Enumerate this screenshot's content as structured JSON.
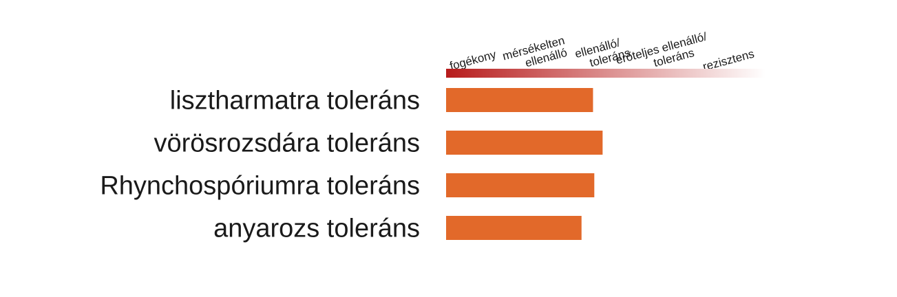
{
  "chart_data": {
    "type": "bar",
    "orientation": "horizontal",
    "scale": {
      "min": 0,
      "max": 5,
      "levels": [
        {
          "lines": [
            "fogékony"
          ]
        },
        {
          "lines": [
            "mérsékelten",
            "ellenálló"
          ]
        },
        {
          "lines": [
            "ellenálló/",
            "toleráns"
          ]
        },
        {
          "lines": [
            "erőteljes ellenálló/",
            "toleráns"
          ]
        },
        {
          "lines": [
            "rezisztens"
          ]
        }
      ],
      "gradient_colors": [
        "#b71c1c",
        "#ffffff"
      ]
    },
    "categories": [
      "lisztharmatra toleráns",
      "vörösrozsdára toleráns",
      "Rhynchospóriumra toleráns",
      "anyarozs toleráns"
    ],
    "values": [
      2.3,
      2.45,
      2.32,
      2.12
    ],
    "bar_color": "#e2692a"
  }
}
